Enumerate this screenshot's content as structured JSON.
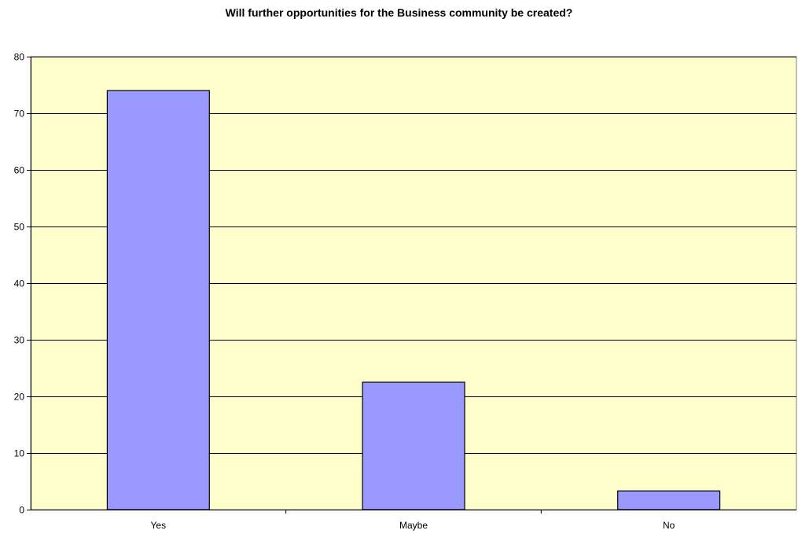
{
  "chart_data": {
    "type": "bar",
    "title": "Will further opportunities for the Business community be created?",
    "categories": [
      "Yes",
      "Maybe",
      "No"
    ],
    "values": [
      74,
      22.5,
      3.3
    ],
    "ylim": [
      0,
      80
    ],
    "yticks": [
      0,
      10,
      20,
      30,
      40,
      50,
      60,
      70,
      80
    ],
    "grid": true,
    "legend": "none",
    "colors": {
      "bar": "#9999ff",
      "plot_background": "#ffffcc",
      "grid": "#000000"
    }
  }
}
